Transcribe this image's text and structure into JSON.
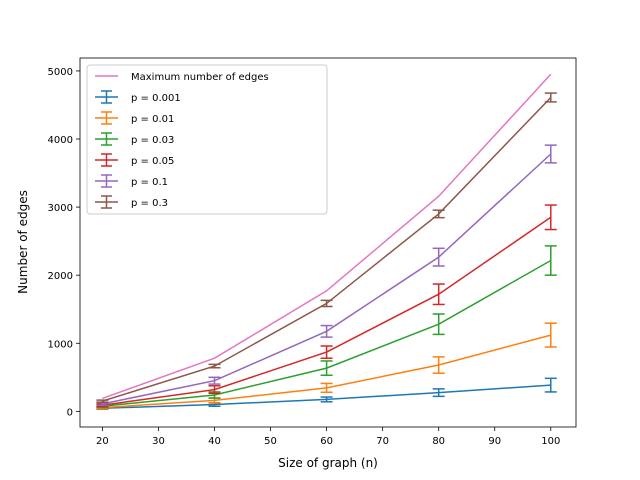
{
  "chart_data": {
    "type": "line",
    "title": "",
    "xlabel": "Size of graph (n)",
    "ylabel": "Number of edges",
    "xlim": [
      16,
      104.5
    ],
    "ylim": [
      -230,
      5190
    ],
    "xticks": [
      20,
      30,
      40,
      50,
      60,
      70,
      80,
      90,
      100
    ],
    "yticks": [
      0,
      1000,
      2000,
      3000,
      4000,
      5000
    ],
    "grid": false,
    "legend_position": "upper-left",
    "x": [
      20,
      40,
      60,
      80,
      100
    ],
    "series": [
      {
        "name": "Maximum number of edges",
        "color": "#e377c2",
        "errorbars": false,
        "values": [
          190,
          780,
          1770,
          3160,
          4950
        ],
        "errors": [
          0,
          0,
          0,
          0,
          0
        ]
      },
      {
        "name": "p = 0.001",
        "color": "#1f77b4",
        "errorbars": true,
        "values": [
          45,
          100,
          175,
          275,
          385
        ],
        "errors": [
          15,
          25,
          35,
          55,
          100
        ]
      },
      {
        "name": "p = 0.01",
        "color": "#ff7f0e",
        "errorbars": true,
        "values": [
          55,
          160,
          345,
          680,
          1120
        ],
        "errors": [
          20,
          35,
          65,
          120,
          175
        ]
      },
      {
        "name": "p = 0.03",
        "color": "#2ca02c",
        "errorbars": true,
        "values": [
          75,
          240,
          635,
          1280,
          2215
        ],
        "errors": [
          20,
          45,
          105,
          150,
          215
        ]
      },
      {
        "name": "p = 0.05",
        "color": "#d62728",
        "errorbars": true,
        "values": [
          90,
          320,
          870,
          1720,
          2850
        ],
        "errors": [
          20,
          55,
          90,
          150,
          180
        ]
      },
      {
        "name": "p = 0.1",
        "color": "#9467bd",
        "errorbars": true,
        "values": [
          110,
          450,
          1175,
          2265,
          3780
        ],
        "errors": [
          20,
          50,
          85,
          130,
          130
        ]
      },
      {
        "name": "p = 0.3",
        "color": "#8c564b",
        "errorbars": true,
        "values": [
          150,
          665,
          1585,
          2900,
          4610
        ],
        "errors": [
          15,
          25,
          45,
          55,
          65
        ]
      }
    ]
  }
}
